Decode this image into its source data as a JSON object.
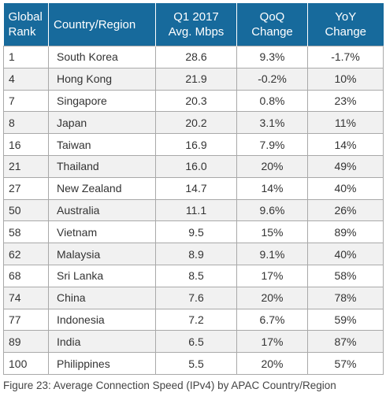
{
  "table": {
    "headers": {
      "rank": [
        "Global",
        "Rank"
      ],
      "country": "Country/Region",
      "speed": [
        "Q1 2017",
        "Avg. Mbps"
      ],
      "qoq": [
        "QoQ",
        "Change"
      ],
      "yoy": [
        "YoY",
        "Change"
      ]
    },
    "rows": [
      {
        "rank": "1",
        "country": "South Korea",
        "speed": "28.6",
        "qoq": "9.3%",
        "yoy": "-1.7%"
      },
      {
        "rank": "4",
        "country": "Hong Kong",
        "speed": "21.9",
        "qoq": "-0.2%",
        "yoy": "10%"
      },
      {
        "rank": "7",
        "country": "Singapore",
        "speed": "20.3",
        "qoq": "0.8%",
        "yoy": "23%"
      },
      {
        "rank": "8",
        "country": "Japan",
        "speed": "20.2",
        "qoq": "3.1%",
        "yoy": "11%"
      },
      {
        "rank": "16",
        "country": "Taiwan",
        "speed": "16.9",
        "qoq": "7.9%",
        "yoy": "14%"
      },
      {
        "rank": "21",
        "country": "Thailand",
        "speed": "16.0",
        "qoq": "20%",
        "yoy": "49%"
      },
      {
        "rank": "27",
        "country": "New Zealand",
        "speed": "14.7",
        "qoq": "14%",
        "yoy": "40%"
      },
      {
        "rank": "50",
        "country": "Australia",
        "speed": "11.1",
        "qoq": "9.6%",
        "yoy": "26%"
      },
      {
        "rank": "58",
        "country": "Vietnam",
        "speed": "9.5",
        "qoq": "15%",
        "yoy": "89%"
      },
      {
        "rank": "62",
        "country": "Malaysia",
        "speed": "8.9",
        "qoq": "9.1%",
        "yoy": "40%"
      },
      {
        "rank": "68",
        "country": "Sri Lanka",
        "speed": "8.5",
        "qoq": "17%",
        "yoy": "58%"
      },
      {
        "rank": "74",
        "country": "China",
        "speed": "7.6",
        "qoq": "20%",
        "yoy": "78%"
      },
      {
        "rank": "77",
        "country": "Indonesia",
        "speed": "7.2",
        "qoq": "6.7%",
        "yoy": "59%"
      },
      {
        "rank": "89",
        "country": "India",
        "speed": "6.5",
        "qoq": "17%",
        "yoy": "87%"
      },
      {
        "rank": "100",
        "country": "Philippines",
        "speed": "5.5",
        "qoq": "20%",
        "yoy": "57%"
      }
    ]
  },
  "caption": "Figure 23: Average Connection Speed (IPv4) by APAC Country/Region",
  "colors": {
    "header_bg": "#176a9c",
    "header_text": "#ffffff",
    "row_alt": "#f1f1f1",
    "border": "#a9a9a9"
  }
}
